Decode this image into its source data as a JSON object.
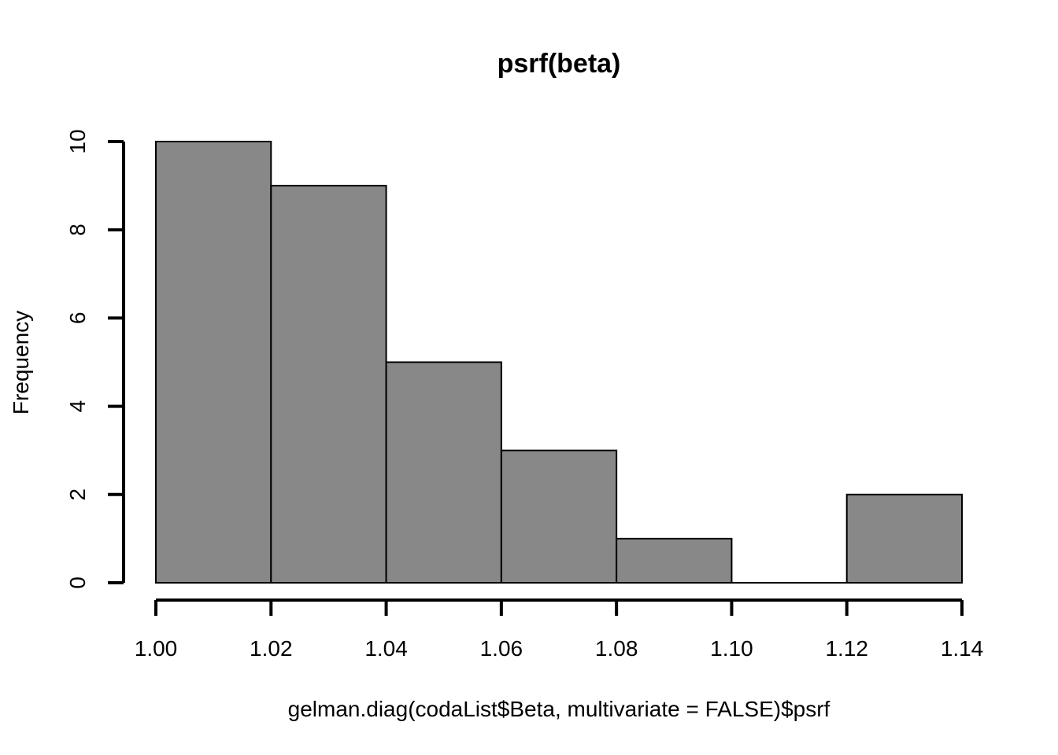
{
  "chart_data": {
    "type": "bar",
    "title": "psrf(beta)",
    "xlabel": "gelman.diag(codaList$Beta, multivariate = FALSE)$psrf",
    "ylabel": "Frequency",
    "bins": [
      {
        "start": 1.0,
        "end": 1.02,
        "count": 10
      },
      {
        "start": 1.02,
        "end": 1.04,
        "count": 9
      },
      {
        "start": 1.04,
        "end": 1.06,
        "count": 5
      },
      {
        "start": 1.06,
        "end": 1.08,
        "count": 3
      },
      {
        "start": 1.08,
        "end": 1.1,
        "count": 1
      },
      {
        "start": 1.1,
        "end": 1.12,
        "count": 0
      },
      {
        "start": 1.12,
        "end": 1.14,
        "count": 2
      }
    ],
    "xlim": [
      1.0,
      1.14
    ],
    "ylim": [
      0,
      10
    ],
    "x_ticks": [
      "1.00",
      "1.02",
      "1.04",
      "1.06",
      "1.08",
      "1.10",
      "1.12",
      "1.14"
    ],
    "y_ticks": [
      "0",
      "2",
      "4",
      "6",
      "8",
      "10"
    ],
    "bar_color": "#888888",
    "edge_color": "#000000",
    "grid": false
  }
}
